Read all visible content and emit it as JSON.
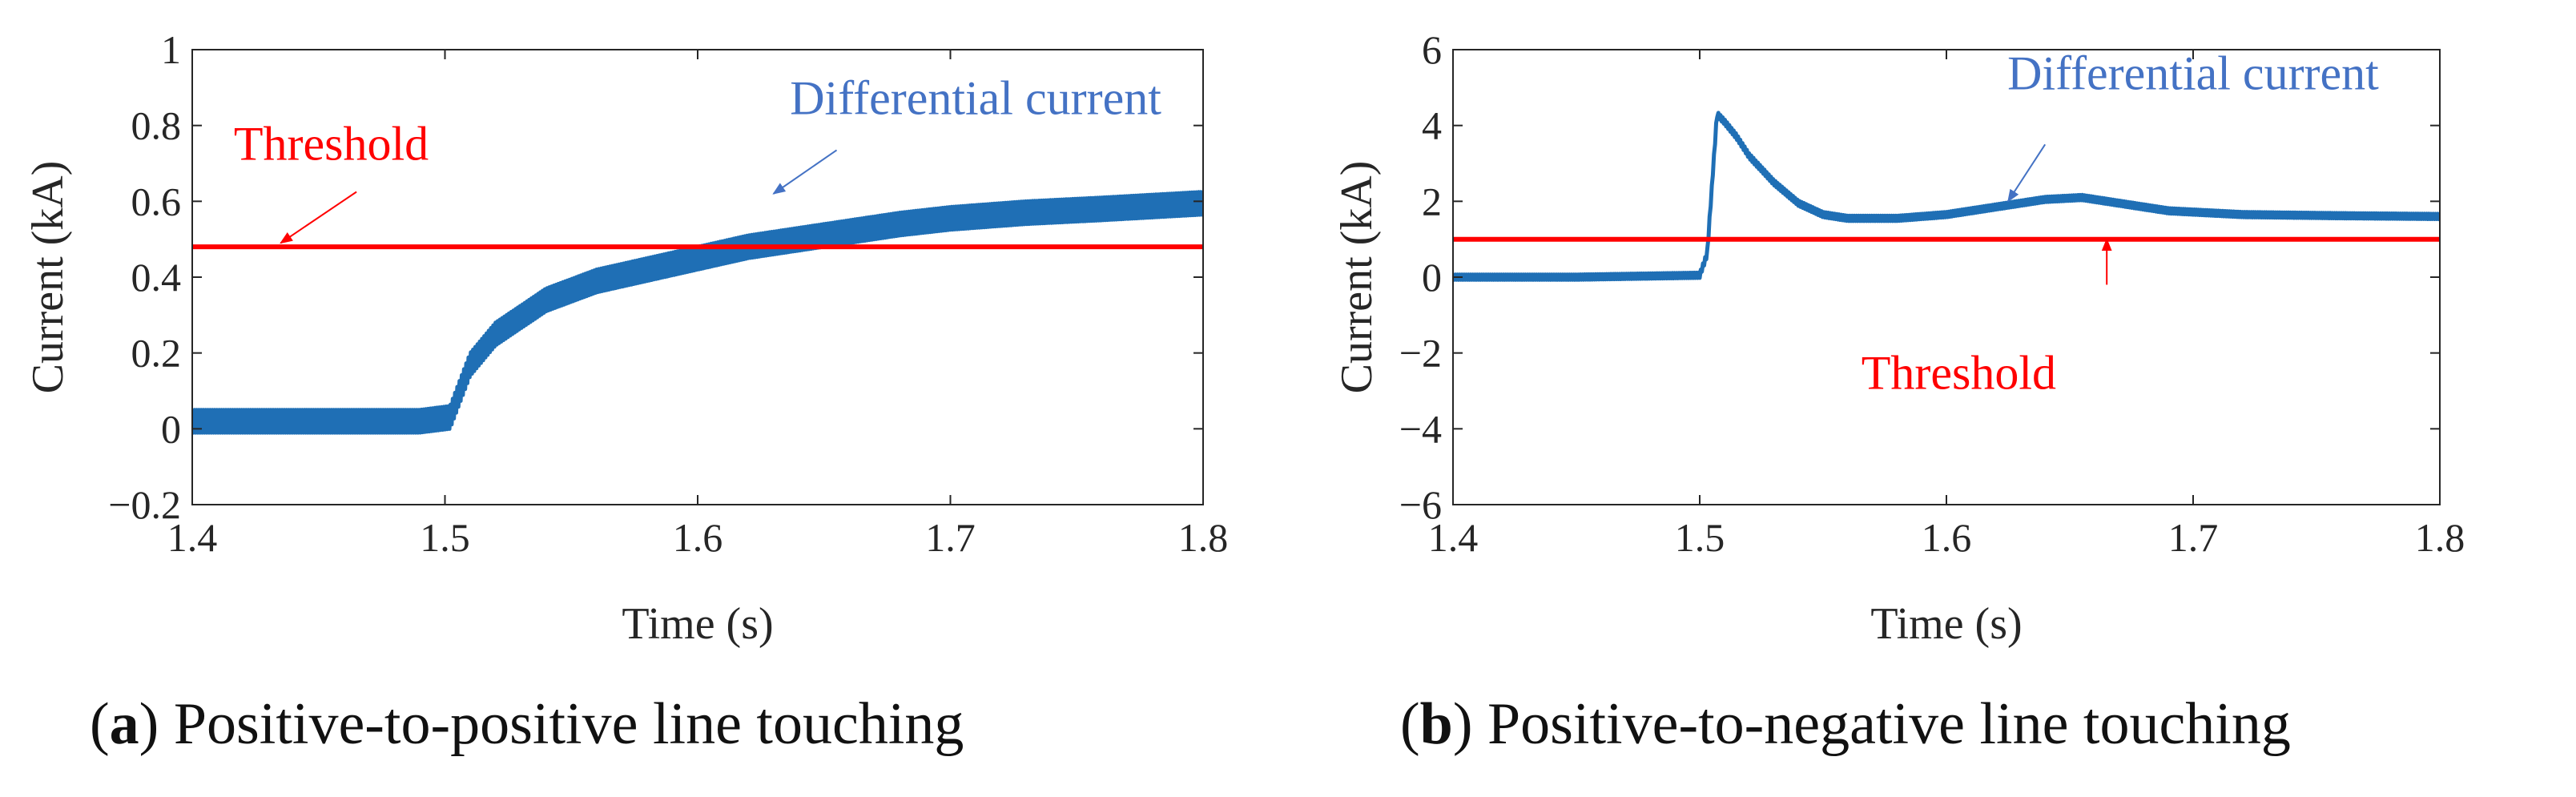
{
  "chart_data": [
    {
      "type": "line",
      "panel_id": "a",
      "caption_letter": "a",
      "caption_text": "Positive-to-positive line touching",
      "xlabel": "Time (s)",
      "ylabel": "Current (kA)",
      "xlim": [
        1.4,
        1.8
      ],
      "ylim": [
        -0.2,
        1.0
      ],
      "xticks": [
        1.4,
        1.5,
        1.6,
        1.7,
        1.8
      ],
      "xtick_labels": [
        "1.4",
        "1.5",
        "1.6",
        "1.7",
        "1.8"
      ],
      "yticks": [
        -0.2,
        0,
        0.2,
        0.4,
        0.6,
        0.8,
        1.0
      ],
      "ytick_labels": [
        "−0.2",
        "0",
        "0.2",
        "0.4",
        "0.6",
        "0.8",
        "1"
      ],
      "grid": false,
      "series": [
        {
          "name": "Differential current",
          "color": "#1f6fb5",
          "ripple_band": 0.06,
          "x": [
            1.4,
            1.43,
            1.46,
            1.49,
            1.502,
            1.51,
            1.52,
            1.54,
            1.56,
            1.58,
            1.6,
            1.62,
            1.65,
            1.68,
            1.7,
            1.73,
            1.76,
            1.8
          ],
          "y": [
            0.02,
            0.02,
            0.02,
            0.02,
            0.03,
            0.17,
            0.25,
            0.34,
            0.39,
            0.42,
            0.45,
            0.48,
            0.51,
            0.54,
            0.555,
            0.57,
            0.58,
            0.595
          ]
        },
        {
          "name": "Threshold",
          "color": "#ff0000",
          "x": [
            1.4,
            1.8
          ],
          "y": [
            0.48,
            0.48
          ]
        }
      ],
      "annotations": [
        {
          "text": "Threshold",
          "color": "#ff0000",
          "text_x": 1.455,
          "text_y": 0.71,
          "arrow_from": [
            1.465,
            0.625
          ],
          "arrow_to": [
            1.435,
            0.49
          ]
        },
        {
          "text": "Differential current",
          "color": "#4472c4",
          "text_x": 1.71,
          "text_y": 0.83,
          "arrow_from": [
            1.655,
            0.735
          ],
          "arrow_to": [
            1.63,
            0.62
          ]
        }
      ]
    },
    {
      "type": "line",
      "panel_id": "b",
      "caption_letter": "b",
      "caption_text": "Positive-to-negative line touching",
      "xlabel": "Time (s)",
      "ylabel": "Current (kA)",
      "xlim": [
        1.4,
        1.8
      ],
      "ylim": [
        -6,
        6
      ],
      "xticks": [
        1.4,
        1.5,
        1.6,
        1.7,
        1.8
      ],
      "xtick_labels": [
        "1.4",
        "1.5",
        "1.6",
        "1.7",
        "1.8"
      ],
      "yticks": [
        -6,
        -4,
        -2,
        0,
        2,
        4,
        6
      ],
      "ytick_labels": [
        "−6",
        "−4",
        "−2",
        "0",
        "2",
        "4",
        "6"
      ],
      "grid": false,
      "series": [
        {
          "name": "Differential current",
          "color": "#1f6fb5",
          "ripple_band": 0.14,
          "x": [
            1.4,
            1.45,
            1.5,
            1.503,
            1.507,
            1.51,
            1.515,
            1.52,
            1.53,
            1.54,
            1.55,
            1.56,
            1.58,
            1.6,
            1.62,
            1.64,
            1.655,
            1.67,
            1.69,
            1.72,
            1.76,
            1.8
          ],
          "y": [
            0.0,
            0.0,
            0.05,
            0.6,
            4.3,
            4.1,
            3.7,
            3.2,
            2.5,
            1.95,
            1.65,
            1.55,
            1.55,
            1.65,
            1.85,
            2.05,
            2.1,
            1.95,
            1.75,
            1.65,
            1.62,
            1.6
          ]
        },
        {
          "name": "Threshold",
          "color": "#ff0000",
          "x": [
            1.4,
            1.8
          ],
          "y": [
            1.0,
            1.0
          ]
        }
      ],
      "annotations": [
        {
          "text": "Differential current",
          "color": "#4472c4",
          "text_x": 1.7,
          "text_y": 4.95,
          "arrow_from": [
            1.64,
            3.5
          ],
          "arrow_to": [
            1.625,
            2.0
          ]
        },
        {
          "text": "Threshold",
          "color": "#ff0000",
          "text_x": 1.605,
          "text_y": -2.95,
          "arrow_from": [
            1.665,
            -0.2
          ],
          "arrow_to": [
            1.665,
            1.0
          ]
        }
      ]
    }
  ]
}
